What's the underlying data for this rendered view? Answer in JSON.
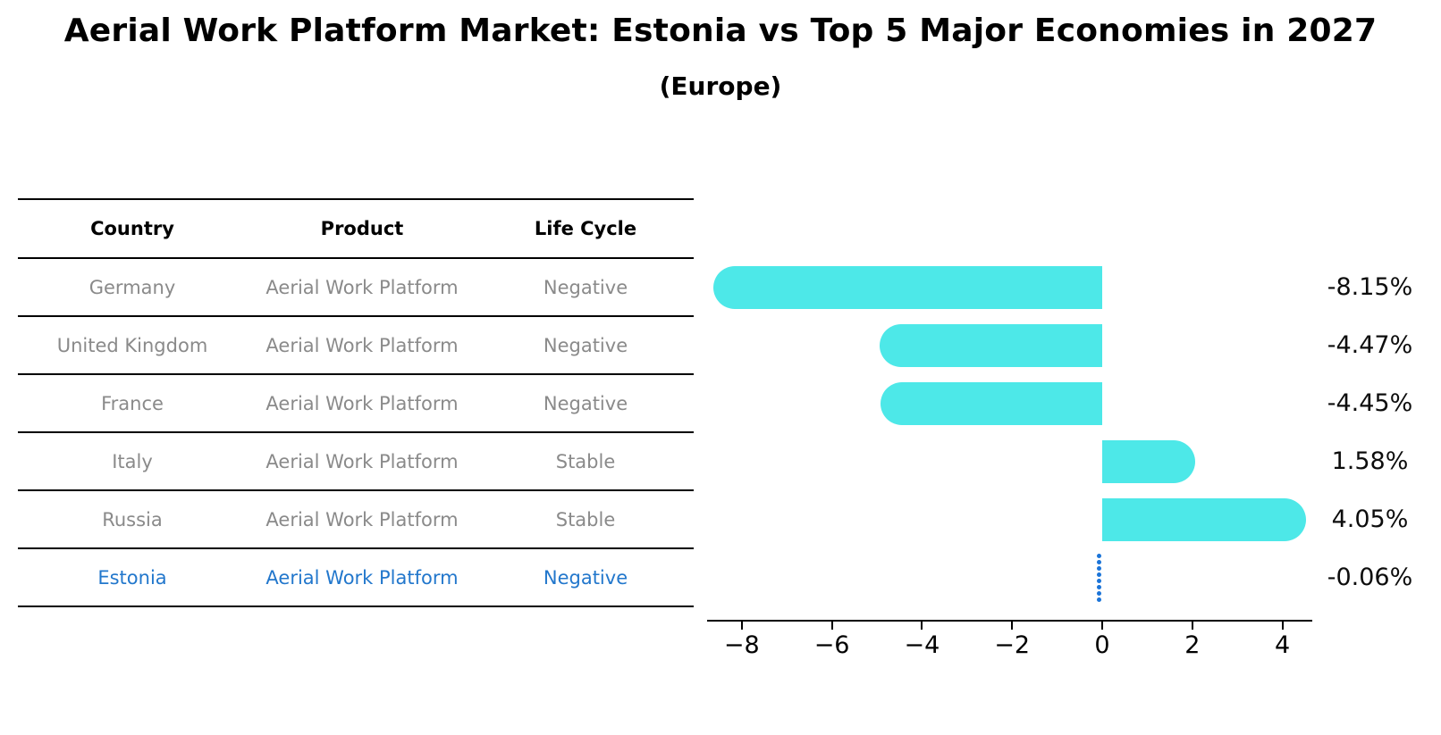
{
  "page": {
    "title": "Aerial Work Platform Market: Estonia vs Top 5 Major Economies in 2027",
    "subtitle": "(Europe)"
  },
  "table": {
    "headers": [
      "Country",
      "Product",
      "Life Cycle"
    ],
    "rows": [
      {
        "country": "Germany",
        "product": "Aerial Work Platform",
        "life_cycle": "Negative",
        "highlight": false
      },
      {
        "country": "United Kingdom",
        "product": "Aerial Work Platform",
        "life_cycle": "Negative",
        "highlight": false
      },
      {
        "country": "France",
        "product": "Aerial Work Platform",
        "life_cycle": "Negative",
        "highlight": false
      },
      {
        "country": "Italy",
        "product": "Aerial Work Platform",
        "life_cycle": "Stable",
        "highlight": false
      },
      {
        "country": "Russia",
        "product": "Aerial Work Platform",
        "life_cycle": "Stable",
        "highlight": false
      },
      {
        "country": "Estonia",
        "product": "Aerial Work Platform",
        "life_cycle": "Negative",
        "highlight": true
      }
    ]
  },
  "chart_data": {
    "type": "bar",
    "orientation": "horizontal",
    "title": "Aerial Work Platform Market: Estonia vs Top 5 Major Economies in 2027 (Europe)",
    "categories": [
      "Germany",
      "United Kingdom",
      "France",
      "Italy",
      "Russia",
      "Estonia"
    ],
    "values": [
      -8.15,
      -4.47,
      -4.45,
      1.58,
      4.05,
      -0.06
    ],
    "value_labels": [
      "-8.15%",
      "-4.47%",
      "-4.45%",
      "1.58%",
      "4.05%",
      "-0.06%"
    ],
    "bar_styles": [
      "bar",
      "bar",
      "bar",
      "bar",
      "bar",
      "dotted-marker"
    ],
    "xticks": [
      -8,
      -6,
      -4,
      -2,
      0,
      2,
      4
    ],
    "xtick_labels": [
      "−8",
      "−6",
      "−4",
      "−2",
      "0",
      "2",
      "4"
    ],
    "xlim": [
      -8.8,
      4.7
    ],
    "grid": false,
    "legend": null,
    "xlabel": "",
    "ylabel": "",
    "bar_color": "#4DE8E8",
    "marker_color": "#1B74D8"
  },
  "colors": {
    "accent_bar": "#4DE8E8",
    "estonia_marker": "#1B74D8",
    "highlight_text": "#2277CC",
    "table_text": "#8A8A8A",
    "line": "#000000"
  }
}
